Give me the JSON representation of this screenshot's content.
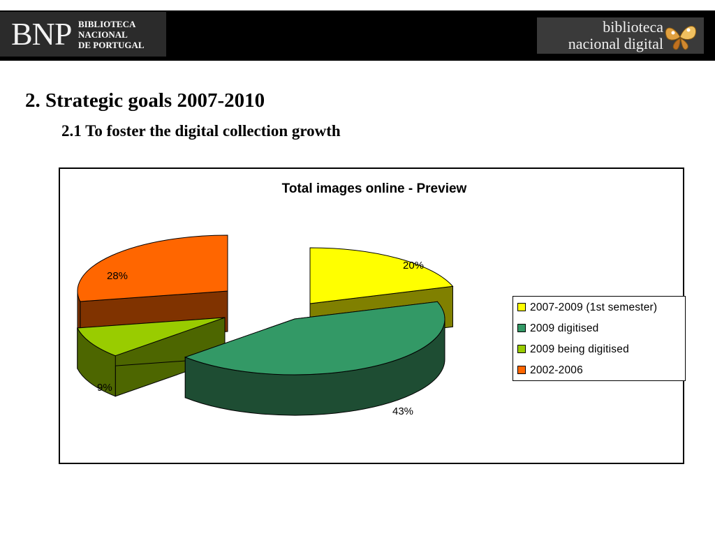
{
  "header": {
    "bnp_logo": {
      "letters": "BNP",
      "lines": [
        "BIBLIOTECA",
        "NACIONAL",
        "DE PORTUGAL"
      ]
    },
    "bnd_logo": {
      "lines": [
        "biblioteca",
        "nacional digital"
      ],
      "icon": "butterfly-icon"
    }
  },
  "slide": {
    "title": "2.  Strategic goals 2007-2010",
    "subtitle": "2.1 To foster the digital collection growth"
  },
  "chart_data": {
    "type": "pie",
    "title": "Total images online - Preview",
    "style": "3d-exploded",
    "legend_position": "right",
    "categories": [
      "2007-2009 (1st semester)",
      "2009 digitised",
      "2009 being digitised",
      "2002-2006"
    ],
    "values": [
      20,
      43,
      9,
      28
    ],
    "labels": [
      "20%",
      "43%",
      "9%",
      "28%"
    ],
    "colors": [
      "#ffff00",
      "#339966",
      "#99cc00",
      "#ff6600"
    ],
    "side_colors": [
      "#808000",
      "#1e4d33",
      "#4d6600",
      "#803300"
    ]
  }
}
